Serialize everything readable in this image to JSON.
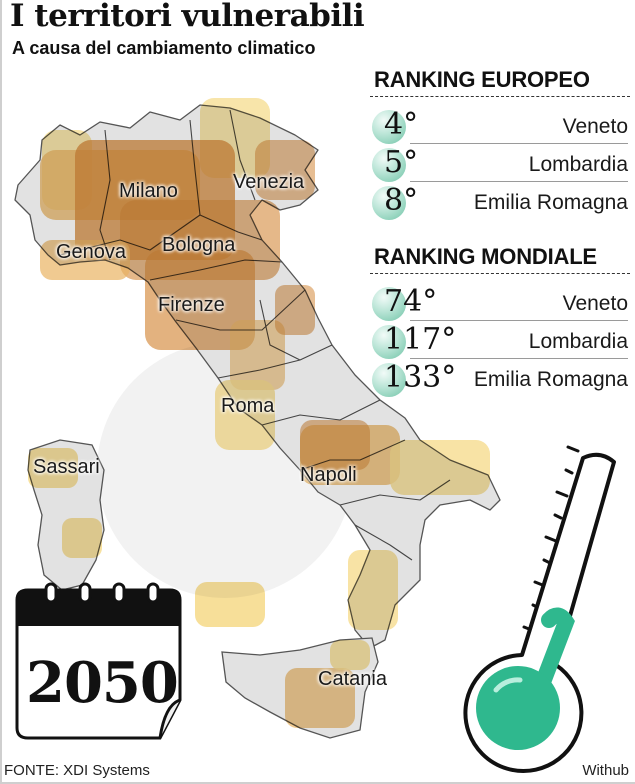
{
  "header": {
    "title": "I territori vulnerabili",
    "subtitle": "A causa del cambiamento climatico"
  },
  "chart_data": {
    "type": "table",
    "title": "I territori vulnerabili",
    "subtitle": "A causa del cambiamento climatico",
    "tables": [
      {
        "heading": "RANKING EUROPEO",
        "rows": [
          {
            "rank": "4",
            "region": "Veneto"
          },
          {
            "rank": "5",
            "region": "Lombardia"
          },
          {
            "rank": "8",
            "region": "Emilia Romagna"
          }
        ]
      },
      {
        "heading": "RANKING MONDIALE",
        "rows": [
          {
            "rank": "74",
            "region": "Veneto"
          },
          {
            "rank": "117",
            "region": "Lombardia"
          },
          {
            "rank": "133",
            "region": "Emilia Romagna"
          }
        ]
      }
    ],
    "map_cities": [
      "Milano",
      "Venezia",
      "Genova",
      "Bologna",
      "Firenze",
      "Roma",
      "Sassari",
      "Napoli",
      "Catania"
    ],
    "year": "2050",
    "colors": {
      "high_risk": "#d4883a",
      "medium_risk": "#e9b463",
      "low_risk": "#f6dc8e",
      "land": "#e3e3e3",
      "thermometer": "#2fb88e"
    }
  },
  "icons": {
    "calendar": "calendar-icon",
    "thermometer": "thermometer-icon"
  },
  "footer": {
    "source": "FONTE: XDI Systems",
    "credit": "Withub"
  }
}
